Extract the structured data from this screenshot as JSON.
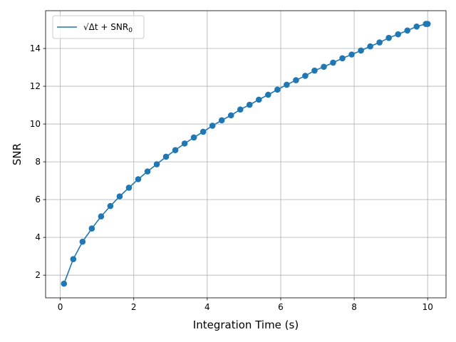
{
  "chart_data": {
    "type": "line",
    "xlabel": "Integration Time (s)",
    "ylabel": "SNR",
    "xlim": [
      -0.4,
      10.5
    ],
    "ylim": [
      0.8,
      16.0
    ],
    "xticks": [
      0,
      2,
      4,
      6,
      8,
      10
    ],
    "yticks": [
      2,
      4,
      6,
      8,
      10,
      12,
      14
    ],
    "grid": true,
    "legend": "top-left",
    "series": [
      {
        "name": "√Δt + SNR₀",
        "legend_main": "√Δt + SNR",
        "legend_sub": "0",
        "color": "#1f77b4",
        "marker": "circle",
        "x": [
          0.1,
          0.3526,
          0.6053,
          0.8579,
          1.1105,
          1.3632,
          1.6158,
          1.8684,
          2.1211,
          2.3737,
          2.6263,
          2.8789,
          3.1316,
          3.3842,
          3.6368,
          3.8895,
          4.1421,
          4.3947,
          4.6474,
          4.9,
          5.1526,
          5.4053,
          5.6579,
          5.9105,
          6.1632,
          6.4158,
          6.6684,
          6.9211,
          7.1737,
          7.4263,
          7.6789,
          7.9316,
          8.1842,
          8.4368,
          8.6895,
          8.9421,
          9.1947,
          9.4474,
          9.7,
          9.9526,
          10.0
        ],
        "y": [
          1.55,
          2.85,
          3.77,
          4.47,
          5.11,
          5.66,
          6.17,
          6.63,
          7.08,
          7.49,
          7.87,
          8.27,
          8.62,
          8.97,
          9.29,
          9.59,
          9.91,
          10.2,
          10.46,
          10.77,
          11.02,
          11.29,
          11.55,
          11.82,
          12.08,
          12.32,
          12.55,
          12.83,
          13.03,
          13.25,
          13.48,
          13.68,
          13.89,
          14.11,
          14.32,
          14.56,
          14.75,
          14.95,
          15.16,
          15.3,
          15.3
        ]
      }
    ]
  }
}
